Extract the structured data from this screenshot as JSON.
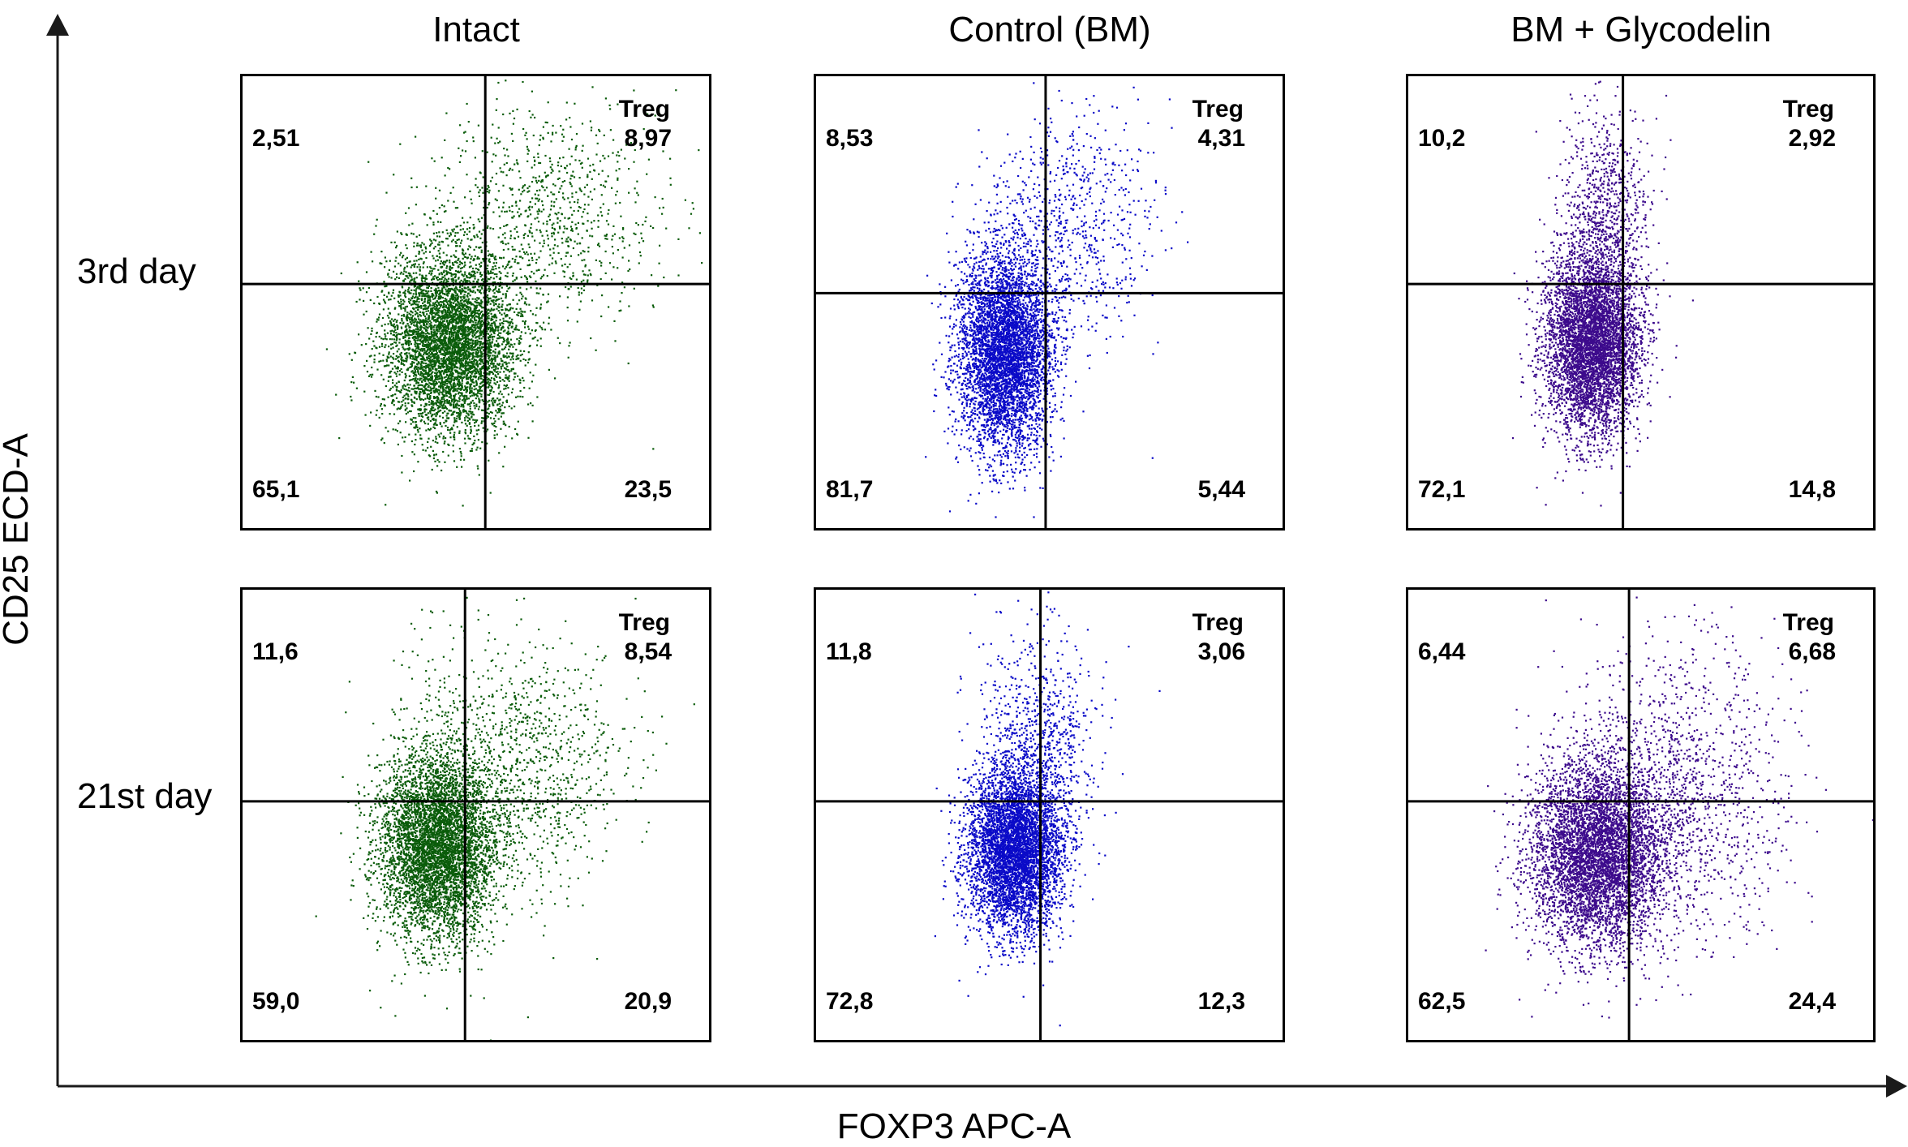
{
  "chart_data": {
    "type": "scatter",
    "title": "",
    "xlabel": "FOXP3 APC-A",
    "ylabel": "CD25 ECD-A",
    "columns": [
      "Intact",
      "Control (BM)",
      "BM + Glycodelin"
    ],
    "rows": [
      "3rd day",
      "21st day"
    ],
    "quadrant_label_upper_right": "Treg",
    "grid": false,
    "panels": [
      {
        "row": "3rd day",
        "column": "Intact",
        "color": "#0a5c0a",
        "quadrants": {
          "upper_left": "2,51",
          "upper_right": "8,97",
          "lower_left": "65,1",
          "lower_right": "23,5"
        }
      },
      {
        "row": "3rd day",
        "column": "Control (BM)",
        "color": "#0a0ac8",
        "quadrants": {
          "upper_left": "8,53",
          "upper_right": "4,31",
          "lower_left": "81,7",
          "lower_right": "5,44"
        }
      },
      {
        "row": "3rd day",
        "column": "BM + Glycodelin",
        "color": "#3c0a8c",
        "quadrants": {
          "upper_left": "10,2",
          "upper_right": "2,92",
          "lower_left": "72,1",
          "lower_right": "14,8"
        }
      },
      {
        "row": "21st day",
        "column": "Intact",
        "color": "#0a5c0a",
        "quadrants": {
          "upper_left": "11,6",
          "upper_right": "8,54",
          "lower_left": "59,0",
          "lower_right": "20,9"
        }
      },
      {
        "row": "21st day",
        "column": "Control (BM)",
        "color": "#0a0ac8",
        "quadrants": {
          "upper_left": "11,8",
          "upper_right": "3,06",
          "lower_left": "72,8",
          "lower_right": "12,3"
        }
      },
      {
        "row": "21st day",
        "column": "BM + Glycodelin",
        "color": "#3c0a8c",
        "quadrants": {
          "upper_left": "6,44",
          "upper_right": "6,68",
          "lower_left": "62,5",
          "lower_right": "24,4"
        }
      }
    ]
  }
}
